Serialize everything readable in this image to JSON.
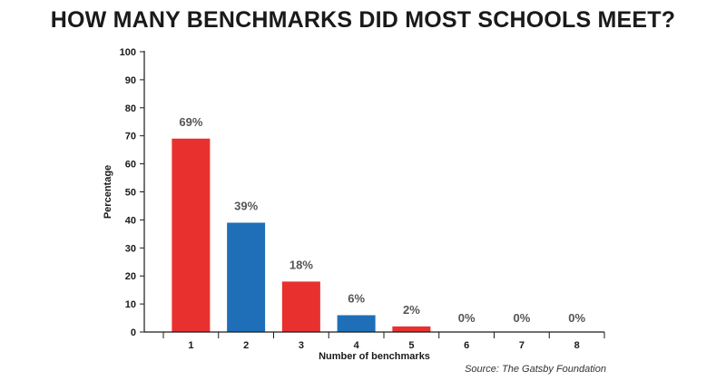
{
  "chart_data": {
    "type": "bar",
    "title": "HOW MANY BENCHMARKS DID MOST SCHOOLS MEET?",
    "xlabel": "Number of benchmarks",
    "ylabel": "Percentage",
    "categories": [
      "1",
      "2",
      "3",
      "4",
      "5",
      "6",
      "7",
      "8"
    ],
    "values": [
      69,
      39,
      18,
      6,
      2,
      0,
      0,
      0
    ],
    "data_labels": [
      "69%",
      "39%",
      "18%",
      "6%",
      "2%",
      "0%",
      "0%",
      "0%"
    ],
    "ylim": [
      0,
      100
    ],
    "yticks": [
      0,
      10,
      20,
      30,
      40,
      50,
      60,
      70,
      80,
      90,
      100
    ],
    "grid": false,
    "colors": {
      "red": "#e8312f",
      "blue": "#1f6fb8",
      "axis": "#1a1a1a",
      "label": "#555555"
    },
    "bar_colors": [
      "#e8312f",
      "#1f6fb8",
      "#e8312f",
      "#1f6fb8",
      "#e8312f",
      "#1f6fb8",
      "#e8312f",
      "#1f6fb8"
    ],
    "source": "Source: The Gatsby Foundation"
  }
}
